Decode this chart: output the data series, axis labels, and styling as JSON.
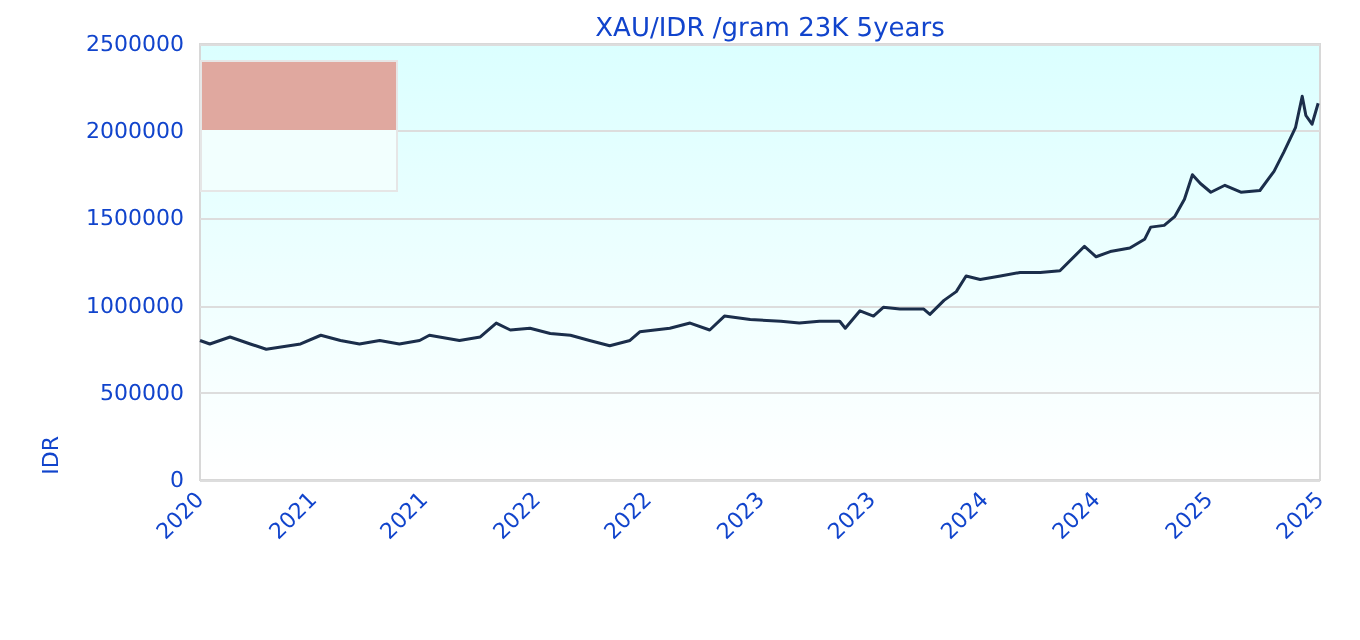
{
  "chart_data": {
    "type": "line",
    "title": "XAU/IDR /gram 23K 5years",
    "ylabel": "IDR",
    "x": [
      "2020-07-01",
      "2020-07-17",
      "2020-08-19",
      "2020-09-21",
      "2020-10-17",
      "2020-12-12",
      "2021-01-14",
      "2021-02-15",
      "2021-03-18",
      "2021-04-20",
      "2021-05-22",
      "2021-06-24",
      "2021-07-10",
      "2021-08-28",
      "2021-10-01",
      "2021-10-27",
      "2021-11-19",
      "2021-12-21",
      "2022-01-23",
      "2022-02-25",
      "2022-03-28",
      "2022-04-30",
      "2022-06-02",
      "2022-06-18",
      "2022-08-06",
      "2022-09-08",
      "2022-10-10",
      "2022-11-03",
      "2022-12-15",
      "2023-02-03",
      "2023-03-05",
      "2023-04-07",
      "2023-05-10",
      "2023-05-19",
      "2023-06-12",
      "2023-07-04",
      "2023-07-20",
      "2023-08-16",
      "2023-09-24",
      "2023-10-04",
      "2023-10-27",
      "2023-11-16",
      "2023-12-02",
      "2023-12-25",
      "2024-01-27",
      "2024-02-28",
      "2024-04-01",
      "2024-05-03",
      "2024-06-12",
      "2024-07-01",
      "2024-07-24",
      "2024-08-25",
      "2024-09-18",
      "2024-09-28",
      "2024-10-20",
      "2024-11-06",
      "2024-11-22",
      "2024-12-05",
      "2024-12-18",
      "2025-01-04",
      "2025-01-27",
      "2025-02-22",
      "2025-03-25",
      "2025-04-17",
      "2025-05-03",
      "2025-05-22",
      "2025-06-02",
      "2025-06-08",
      "2025-06-18",
      "2025-06-28"
    ],
    "series": [
      {
        "color": "#1b2e4b",
        "values": [
          800000,
          780000,
          820000,
          780000,
          750000,
          780000,
          830000,
          800000,
          780000,
          800000,
          780000,
          800000,
          830000,
          800000,
          820000,
          900000,
          860000,
          870000,
          840000,
          830000,
          800000,
          770000,
          800000,
          850000,
          870000,
          900000,
          860000,
          940000,
          920000,
          910000,
          900000,
          910000,
          910000,
          870000,
          970000,
          940000,
          990000,
          980000,
          980000,
          950000,
          1030000,
          1080000,
          1170000,
          1150000,
          1170000,
          1190000,
          1190000,
          1200000,
          1340000,
          1280000,
          1310000,
          1330000,
          1380000,
          1450000,
          1460000,
          1510000,
          1610000,
          1750000,
          1700000,
          1650000,
          1690000,
          1650000,
          1660000,
          1770000,
          1880000,
          2020000,
          2200000,
          2090000,
          2040000,
          2160000
        ]
      }
    ],
    "xlim": [
      "2020-07-01",
      "2025-07-01"
    ],
    "xticks": [
      {
        "value": "2020-07-01",
        "label": "2020"
      },
      {
        "value": "2021-01-01",
        "label": "2021"
      },
      {
        "value": "2021-07-01",
        "label": "2021"
      },
      {
        "value": "2022-01-01",
        "label": "2022"
      },
      {
        "value": "2022-07-01",
        "label": "2022"
      },
      {
        "value": "2023-01-01",
        "label": "2023"
      },
      {
        "value": "2023-07-01",
        "label": "2023"
      },
      {
        "value": "2024-01-01",
        "label": "2024"
      },
      {
        "value": "2024-07-01",
        "label": "2024"
      },
      {
        "value": "2025-01-01",
        "label": "2025"
      },
      {
        "value": "2025-07-01",
        "label": "2025"
      }
    ],
    "ylim": [
      0,
      2500000
    ],
    "yticks": [
      0,
      500000,
      1000000,
      1500000,
      2000000,
      2500000
    ],
    "grid": "y",
    "marker": "none",
    "line_style": "solid"
  }
}
